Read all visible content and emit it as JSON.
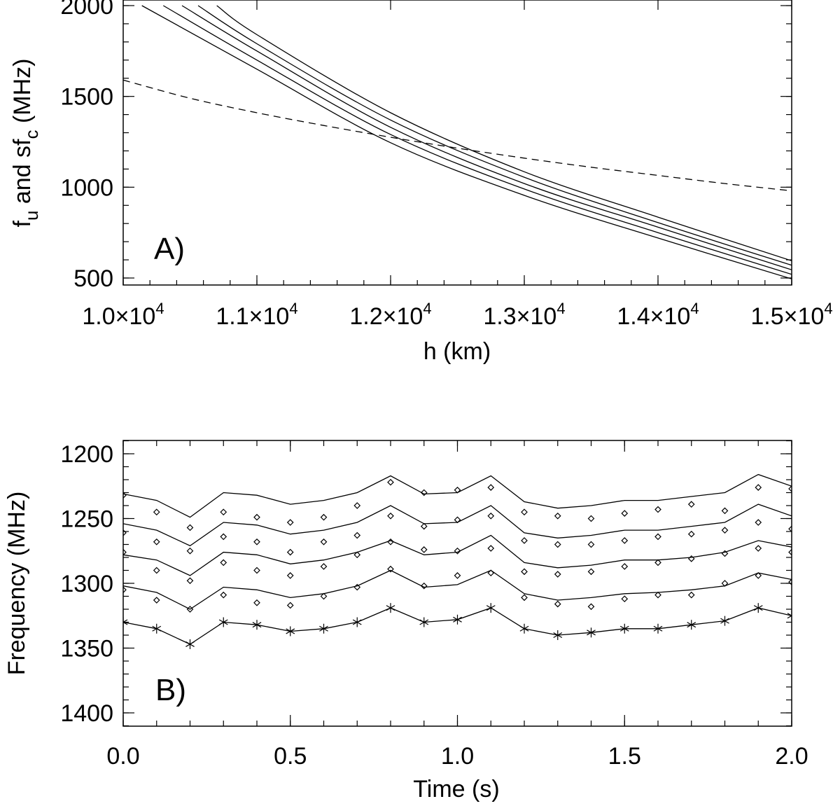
{
  "chart_data": [
    {
      "panel": "A",
      "type": "line",
      "panel_label": "A)",
      "xlabel": "h (km)",
      "ylabel": "f",
      "ylabel_sub1": "u",
      "ylabel_mid": " and sf",
      "ylabel_sub2": "c",
      "ylabel_tail": " (MHz)",
      "xlim": [
        10000,
        15000
      ],
      "ylim": [
        450,
        2000
      ],
      "xticks": [
        {
          "value": 10000,
          "mant": "1.0×10",
          "exp": "4"
        },
        {
          "value": 11000,
          "mant": "1.1×10",
          "exp": "4"
        },
        {
          "value": 12000,
          "mant": "1.2×10",
          "exp": "4"
        },
        {
          "value": 13000,
          "mant": "1.3×10",
          "exp": "4"
        },
        {
          "value": 14000,
          "mant": "1.4×10",
          "exp": "4"
        },
        {
          "value": 15000,
          "mant": "1.5×10",
          "exp": "4"
        }
      ],
      "yticks": [
        {
          "value": 500,
          "label": "500"
        },
        {
          "value": 1000,
          "label": "1000"
        },
        {
          "value": 1500,
          "label": "1500"
        },
        {
          "value": 2000,
          "label": "2000"
        }
      ],
      "series": [
        {
          "name": "f_u curve 1",
          "style": "solid",
          "points": [
            [
              10140,
              2000
            ],
            [
              11000,
              1650
            ],
            [
              12000,
              1245
            ],
            [
              13000,
              955
            ],
            [
              14000,
              720
            ],
            [
              15000,
              495
            ]
          ]
        },
        {
          "name": "f_u curve 2",
          "style": "solid",
          "points": [
            [
              10300,
              2000
            ],
            [
              11000,
              1700
            ],
            [
              12000,
              1290
            ],
            [
              13000,
              990
            ],
            [
              14000,
              750
            ],
            [
              15000,
              520
            ]
          ]
        },
        {
          "name": "f_u curve 3",
          "style": "solid",
          "points": [
            [
              10440,
              2000
            ],
            [
              11000,
              1750
            ],
            [
              12000,
              1330
            ],
            [
              13000,
              1020
            ],
            [
              14000,
              780
            ],
            [
              15000,
              545
            ]
          ]
        },
        {
          "name": "f_u curve 4",
          "style": "solid",
          "points": [
            [
              10560,
              2000
            ],
            [
              11000,
              1790
            ],
            [
              12000,
              1370
            ],
            [
              13000,
              1055
            ],
            [
              14000,
              805
            ],
            [
              15000,
              570
            ]
          ]
        },
        {
          "name": "f_u curve 5",
          "style": "solid",
          "points": [
            [
              10700,
              2000
            ],
            [
              11000,
              1840
            ],
            [
              12000,
              1410
            ],
            [
              13000,
              1085
            ],
            [
              14000,
              835
            ],
            [
              15000,
              595
            ]
          ]
        },
        {
          "name": "s f_c",
          "style": "dashed",
          "points": [
            [
              10000,
              1590
            ],
            [
              10500,
              1490
            ],
            [
              11000,
              1410
            ],
            [
              11500,
              1340
            ],
            [
              12000,
              1275
            ],
            [
              12500,
              1215
            ],
            [
              13000,
              1160
            ],
            [
              13500,
              1110
            ],
            [
              14000,
              1065
            ],
            [
              14500,
              1020
            ],
            [
              15000,
              980
            ]
          ]
        }
      ]
    },
    {
      "panel": "B",
      "type": "line",
      "panel_label": "B)",
      "xlabel": "Time (s)",
      "ylabel": "Frequency (MHz)",
      "xlim": [
        0,
        2
      ],
      "ylim": [
        1410,
        1190
      ],
      "xticks": [
        {
          "value": 0,
          "label": "0.0"
        },
        {
          "value": 0.5,
          "label": "0.5"
        },
        {
          "value": 1,
          "label": "1.0"
        },
        {
          "value": 1.5,
          "label": "1.5"
        },
        {
          "value": 2,
          "label": "2.0"
        }
      ],
      "yticks": [
        {
          "value": 1200,
          "label": "1200"
        },
        {
          "value": 1250,
          "label": "1250"
        },
        {
          "value": 1300,
          "label": "1300"
        },
        {
          "value": 1350,
          "label": "1350"
        },
        {
          "value": 1400,
          "label": "1400"
        }
      ],
      "times": [
        0,
        0.1,
        0.2,
        0.3,
        0.4,
        0.5,
        0.6,
        0.7,
        0.8,
        0.9,
        1.0,
        1.1,
        1.2,
        1.3,
        1.4,
        1.5,
        1.6,
        1.7,
        1.8,
        1.9,
        2.0
      ],
      "model_lines": [
        {
          "name": "line 1",
          "values": [
            1231,
            1236,
            1249,
            1230,
            1232,
            1239,
            1236,
            1230,
            1217,
            1231,
            1230,
            1217,
            1237,
            1242,
            1240,
            1236,
            1236,
            1233,
            1230,
            1216,
            1225
          ]
        },
        {
          "name": "line 2",
          "values": [
            1254,
            1259,
            1271,
            1253,
            1255,
            1262,
            1259,
            1253,
            1240,
            1254,
            1253,
            1240,
            1261,
            1265,
            1263,
            1259,
            1259,
            1256,
            1253,
            1239,
            1248
          ]
        },
        {
          "name": "line 3",
          "values": [
            1278,
            1282,
            1294,
            1276,
            1278,
            1285,
            1282,
            1276,
            1267,
            1278,
            1276,
            1263,
            1284,
            1288,
            1286,
            1282,
            1282,
            1280,
            1276,
            1267,
            1272
          ]
        },
        {
          "name": "line 4",
          "values": [
            1302,
            1307,
            1320,
            1303,
            1305,
            1311,
            1308,
            1302,
            1290,
            1303,
            1301,
            1290,
            1308,
            1313,
            1311,
            1308,
            1307,
            1305,
            1302,
            1292,
            1297
          ]
        },
        {
          "name": "line 5",
          "values": [
            1330,
            1335,
            1347,
            1330,
            1332,
            1337,
            1335,
            1330,
            1319,
            1330,
            1328,
            1319,
            1335,
            1340,
            1338,
            1335,
            1335,
            1332,
            1329,
            1319,
            1325
          ]
        }
      ],
      "diamond_series": [
        {
          "name": "diamonds 1",
          "values": [
            1232,
            1245,
            1257,
            1245,
            1249,
            1253,
            1249,
            1240,
            1222,
            1230,
            1228,
            1226,
            1245,
            1248,
            1250,
            1246,
            1243,
            1239,
            1244,
            1226,
            1227
          ]
        },
        {
          "name": "diamonds 2",
          "values": [
            1261,
            1268,
            1275,
            1264,
            1268,
            1276,
            1268,
            1263,
            1248,
            1256,
            1251,
            1248,
            1267,
            1270,
            1270,
            1267,
            1264,
            1262,
            1259,
            1253,
            1258
          ]
        },
        {
          "name": "diamonds 3",
          "values": [
            1276,
            1290,
            1298,
            1284,
            1290,
            1294,
            1287,
            1278,
            1268,
            1274,
            1275,
            1273,
            1291,
            1293,
            1291,
            1287,
            1284,
            1281,
            1277,
            1273,
            1276
          ]
        },
        {
          "name": "diamonds 4",
          "values": [
            1305,
            1313,
            1320,
            1309,
            1315,
            1317,
            1310,
            1303,
            1289,
            1302,
            1294,
            1292,
            1311,
            1316,
            1318,
            1312,
            1309,
            1309,
            1300,
            1294,
            1299
          ]
        }
      ],
      "asterisk_series": {
        "name": "asterisks",
        "values": [
          1330,
          1335,
          1347,
          1330,
          1332,
          1337,
          1335,
          1330,
          1319,
          1330,
          1328,
          1319,
          1335,
          1340,
          1338,
          1335,
          1335,
          1332,
          1329,
          1319,
          1325
        ]
      }
    }
  ]
}
